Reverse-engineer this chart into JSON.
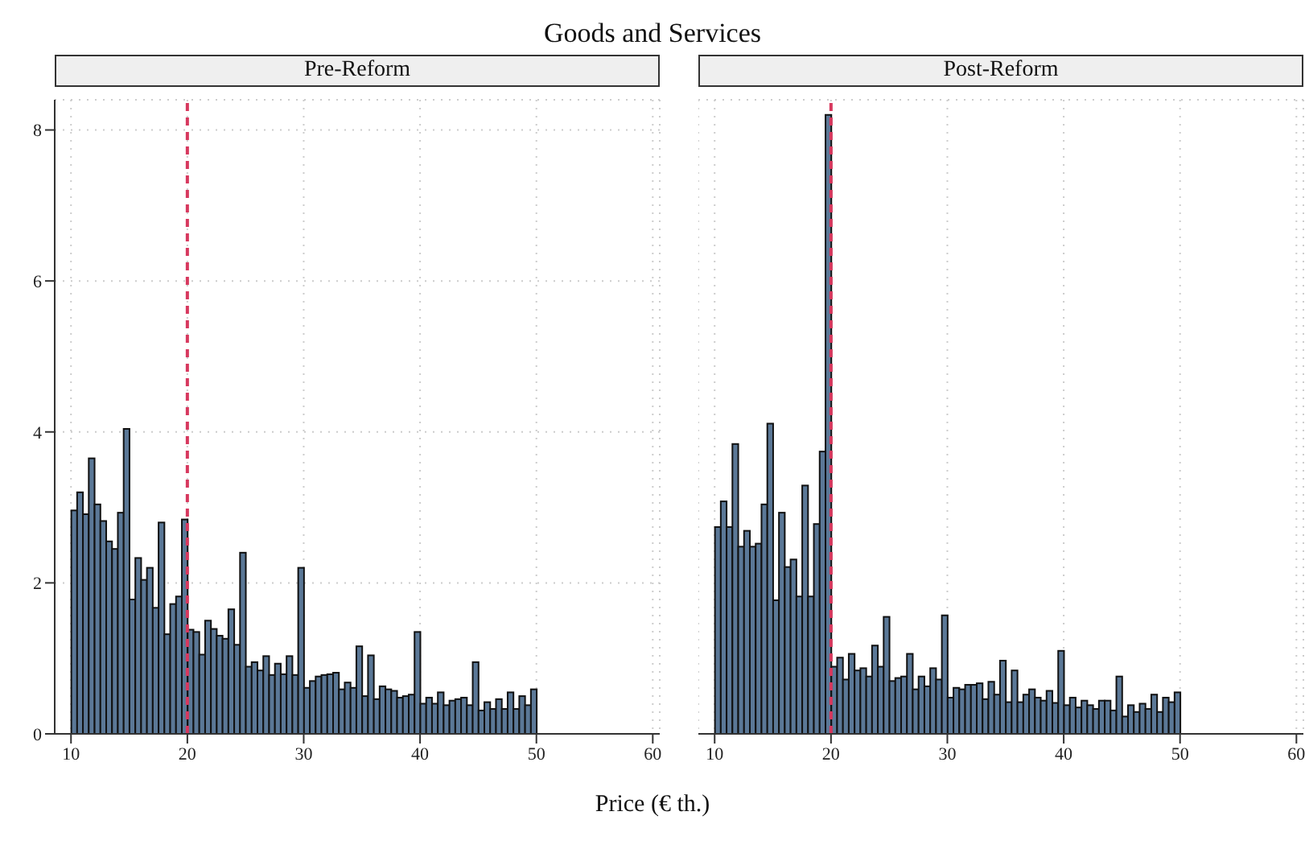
{
  "chart_data": [
    {
      "type": "histogram",
      "title": "Goods and Services",
      "subtitle": "Pre-Reform",
      "xlabel": "Price (€ th.)",
      "bins": [
        10,
        10.5,
        11,
        11.5,
        12,
        12.5,
        13,
        13.5,
        14,
        14.5,
        15,
        15.5,
        16,
        16.5,
        17,
        17.5,
        18,
        18.5,
        19,
        19.5,
        20,
        20.5,
        21,
        21.5,
        22,
        22.5,
        23,
        23.5,
        24,
        24.5,
        25,
        25.5,
        26,
        26.5,
        27,
        27.5,
        28,
        28.5,
        29,
        29.5,
        30,
        30.5,
        31,
        31.5,
        32,
        32.5,
        33,
        33.5,
        34,
        34.5,
        35,
        35.5,
        36,
        36.5,
        37,
        37.5,
        38,
        38.5,
        39,
        39.5,
        40,
        40.5,
        41,
        41.5,
        42,
        42.5,
        43,
        43.5,
        44,
        44.5,
        45,
        45.5,
        46,
        46.5,
        47,
        47.5,
        48,
        48.5,
        49,
        49.5,
        50
      ],
      "values": [
        2.96,
        3.2,
        2.91,
        3.65,
        3.04,
        2.82,
        2.55,
        2.45,
        2.93,
        4.04,
        1.78,
        2.33,
        2.04,
        2.2,
        1.67,
        2.8,
        1.32,
        1.72,
        1.82,
        2.84,
        1.38,
        1.35,
        1.05,
        1.5,
        1.39,
        1.3,
        1.26,
        1.65,
        1.18,
        2.4,
        0.89,
        0.95,
        0.84,
        1.03,
        0.78,
        0.93,
        0.79,
        1.03,
        0.78,
        2.2,
        0.61,
        0.7,
        0.76,
        0.78,
        0.79,
        0.81,
        0.59,
        0.68,
        0.61,
        1.16,
        0.5,
        1.04,
        0.46,
        0.63,
        0.59,
        0.57,
        0.48,
        0.5,
        0.52,
        1.35,
        0.4,
        0.48,
        0.4,
        0.55,
        0.38,
        0.44,
        0.46,
        0.48,
        0.38,
        0.95,
        0.31,
        0.42,
        0.33,
        0.46,
        0.33,
        0.55,
        0.33,
        0.5,
        0.38,
        0.59
      ],
      "color": "#5b7897",
      "xlim": [
        8.6,
        60.6
      ],
      "ylim": [
        0,
        8.4
      ],
      "xticks": [
        10,
        20,
        30,
        40,
        50,
        60
      ],
      "yticks": [
        0,
        2,
        4,
        6,
        8
      ],
      "grid": true,
      "ref_lines": [
        {
          "axis": "x",
          "value": 20,
          "color": "#d7385e",
          "line_style": "dashed"
        }
      ]
    },
    {
      "type": "histogram",
      "subtitle": "Post-Reform",
      "bins": [
        10,
        10.5,
        11,
        11.5,
        12,
        12.5,
        13,
        13.5,
        14,
        14.5,
        15,
        15.5,
        16,
        16.5,
        17,
        17.5,
        18,
        18.5,
        19,
        19.5,
        20,
        20.5,
        21,
        21.5,
        22,
        22.5,
        23,
        23.5,
        24,
        24.5,
        25,
        25.5,
        26,
        26.5,
        27,
        27.5,
        28,
        28.5,
        29,
        29.5,
        30,
        30.5,
        31,
        31.5,
        32,
        32.5,
        33,
        33.5,
        34,
        34.5,
        35,
        35.5,
        36,
        36.5,
        37,
        37.5,
        38,
        38.5,
        39,
        39.5,
        40,
        40.5,
        41,
        41.5,
        42,
        42.5,
        43,
        43.5,
        44,
        44.5,
        45,
        45.5,
        46,
        46.5,
        47,
        47.5,
        48,
        48.5,
        49,
        49.5,
        50
      ],
      "values": [
        2.74,
        3.08,
        2.74,
        3.84,
        2.48,
        2.69,
        2.48,
        2.52,
        3.04,
        4.11,
        1.77,
        2.93,
        2.21,
        2.31,
        1.82,
        3.29,
        1.82,
        2.78,
        3.74,
        8.2,
        0.89,
        1.01,
        0.72,
        1.06,
        0.84,
        0.87,
        0.76,
        1.17,
        0.89,
        1.55,
        0.7,
        0.74,
        0.76,
        1.06,
        0.59,
        0.76,
        0.63,
        0.87,
        0.72,
        1.57,
        0.48,
        0.61,
        0.59,
        0.65,
        0.65,
        0.67,
        0.46,
        0.69,
        0.52,
        0.97,
        0.42,
        0.84,
        0.42,
        0.52,
        0.59,
        0.48,
        0.44,
        0.57,
        0.41,
        1.1,
        0.38,
        0.48,
        0.35,
        0.44,
        0.38,
        0.33,
        0.44,
        0.44,
        0.31,
        0.76,
        0.23,
        0.38,
        0.29,
        0.4,
        0.33,
        0.52,
        0.29,
        0.48,
        0.42,
        0.55
      ],
      "color": "#5b7897",
      "xlim": [
        8.6,
        60.6
      ],
      "ylim": [
        0,
        8.4
      ],
      "xticks": [
        10,
        20,
        30,
        40,
        50,
        60
      ],
      "yticks": [
        0,
        2,
        4,
        6,
        8
      ],
      "grid": true,
      "tick_labels": "x",
      "ref_lines": [
        {
          "axis": "x",
          "value": 20,
          "color": "#d7385e",
          "line_style": "dashed"
        }
      ]
    }
  ]
}
